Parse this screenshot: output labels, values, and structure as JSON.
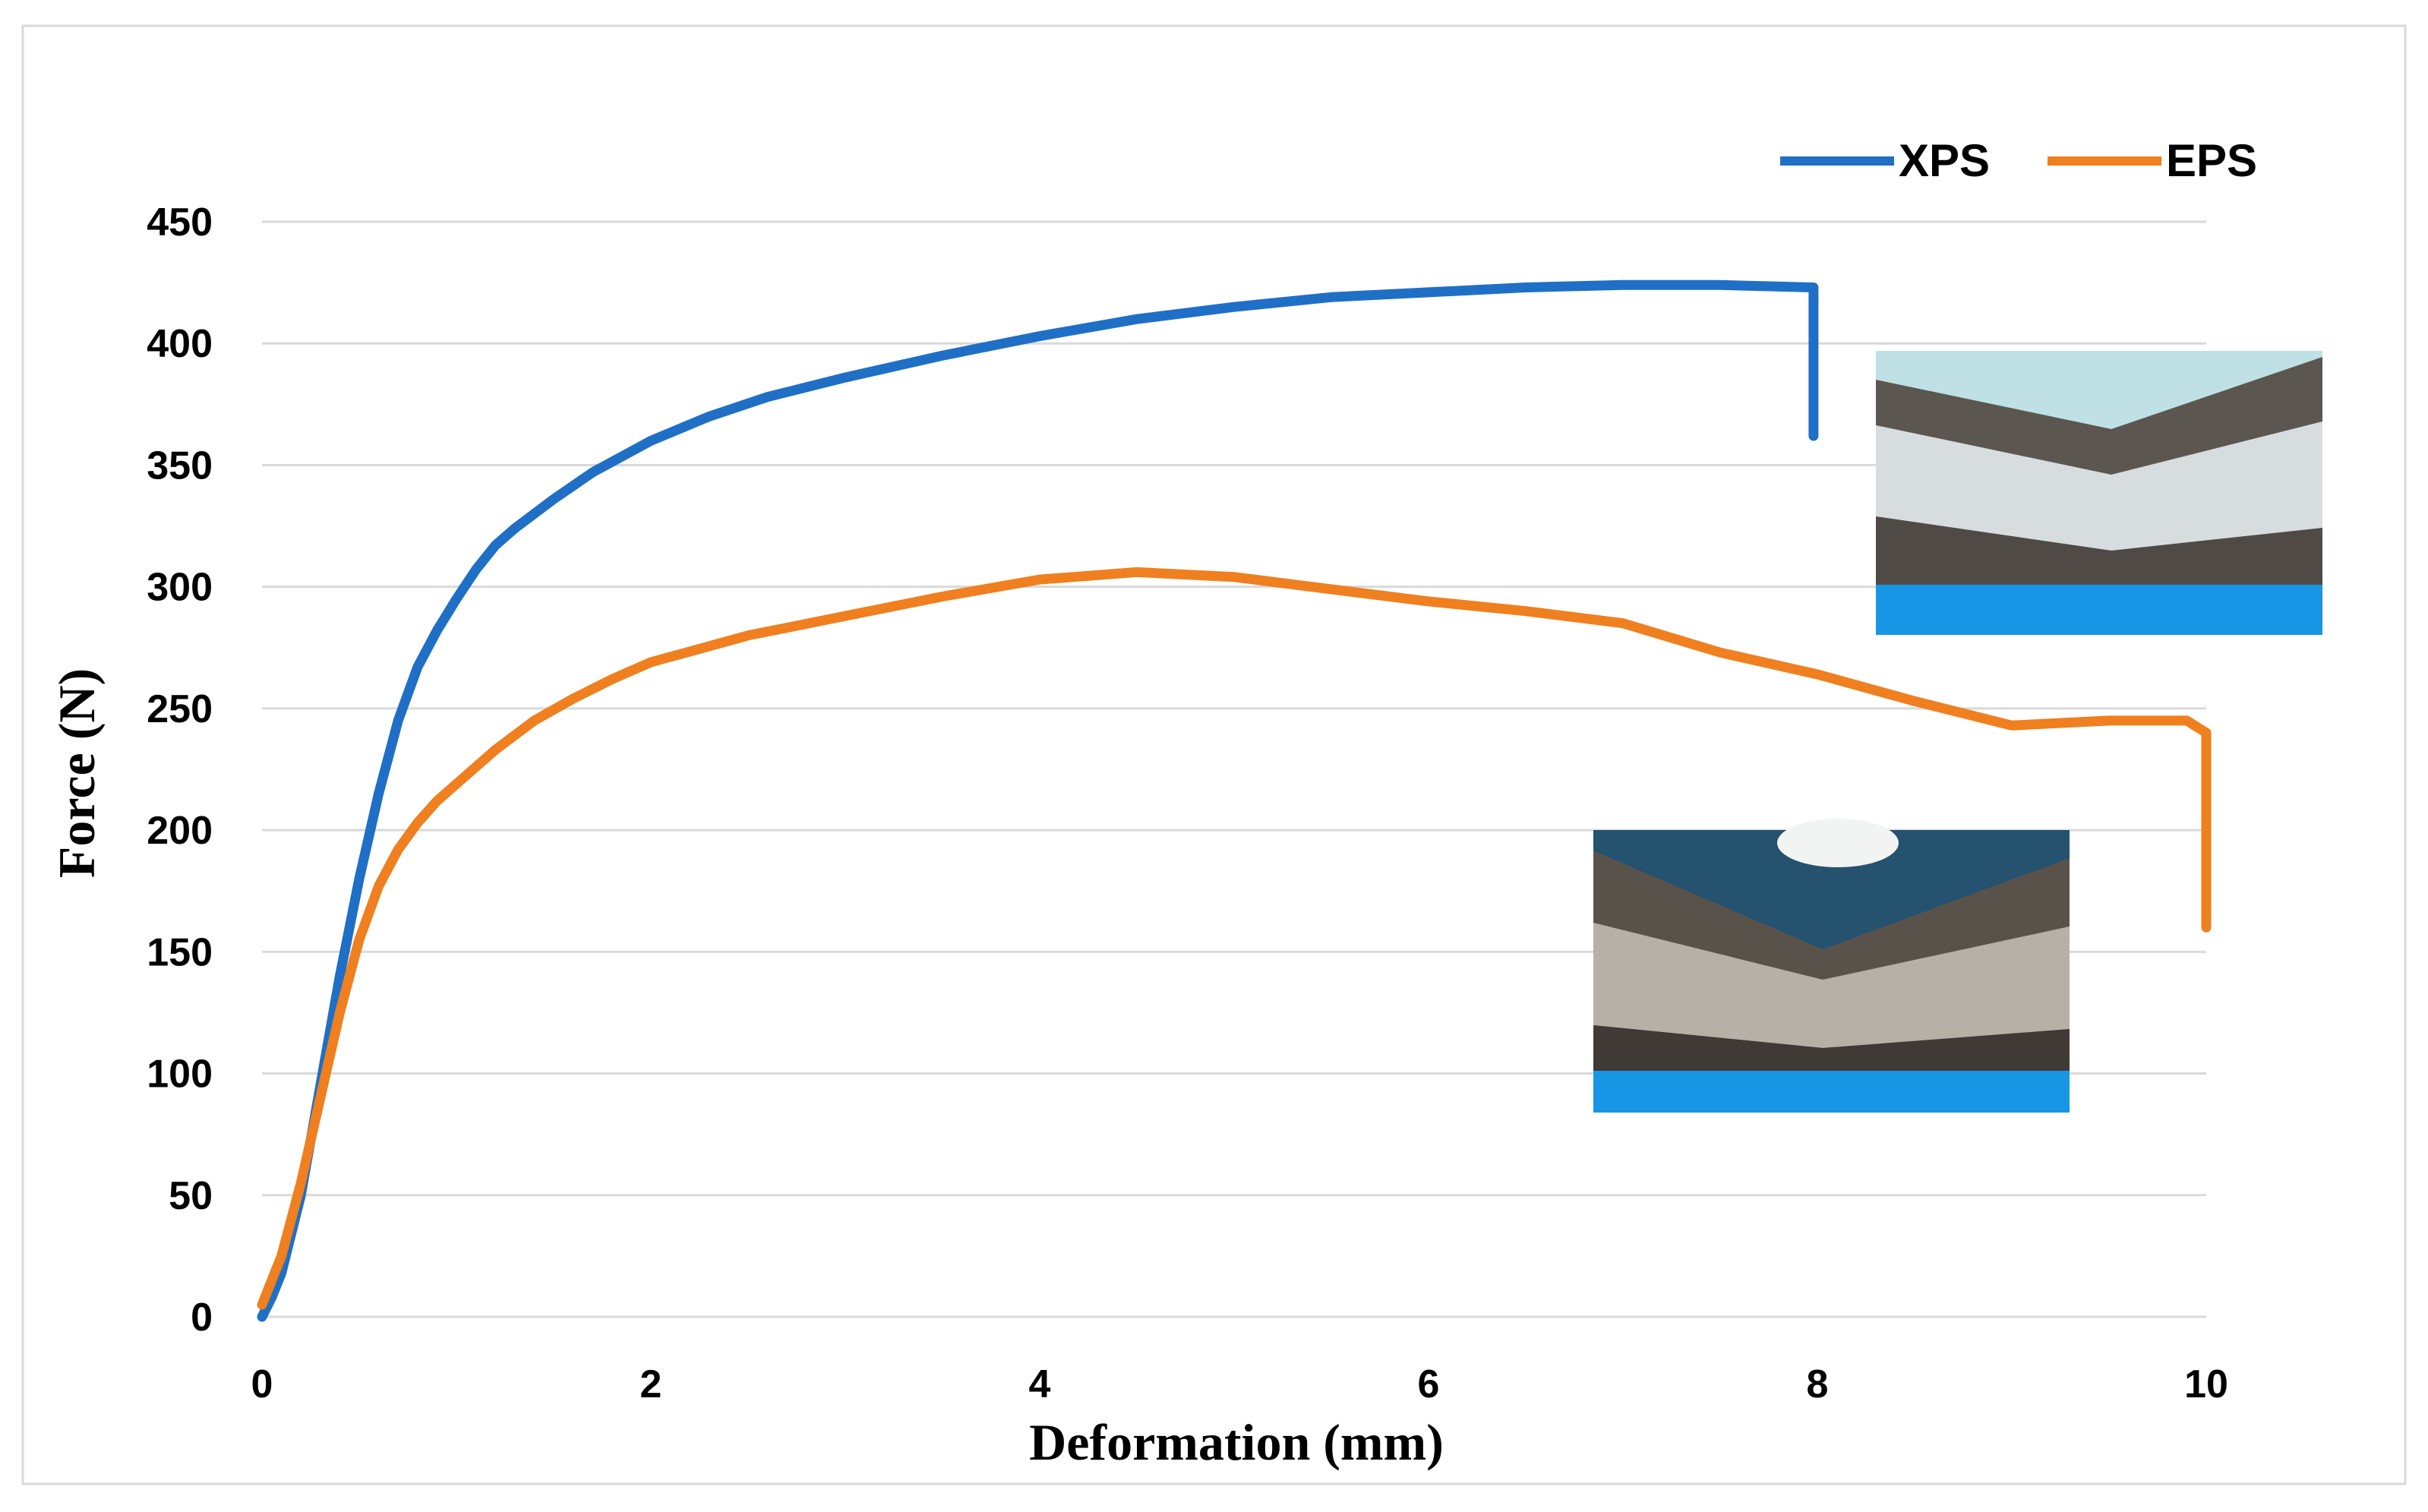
{
  "chart_data": {
    "type": "line",
    "title": "",
    "xlabel": "Deformation (mm)",
    "ylabel": "Force (N)",
    "xlim": [
      0,
      10
    ],
    "ylim": [
      0,
      450
    ],
    "xticks": [
      0,
      2,
      4,
      6,
      8,
      10
    ],
    "yticks": [
      0,
      50,
      100,
      150,
      200,
      250,
      300,
      350,
      400,
      450
    ],
    "grid": "horizontal",
    "legend_position": "top-right",
    "series": [
      {
        "name": "XPS",
        "color": "#1f6fc6",
        "x": [
          0,
          0.05,
          0.1,
          0.2,
          0.3,
          0.4,
          0.5,
          0.6,
          0.7,
          0.8,
          0.9,
          1.0,
          1.1,
          1.2,
          1.3,
          1.5,
          1.7,
          2.0,
          2.3,
          2.6,
          3.0,
          3.5,
          4.0,
          4.5,
          5.0,
          5.5,
          6.0,
          6.5,
          7.0,
          7.5,
          7.98,
          7.98
        ],
        "y": [
          0,
          8,
          18,
          50,
          95,
          140,
          180,
          215,
          245,
          267,
          282,
          295,
          307,
          317,
          324,
          336,
          347,
          360,
          370,
          378,
          386,
          395,
          403,
          410,
          415,
          419,
          421,
          423,
          424,
          424,
          423,
          362
        ]
      },
      {
        "name": "EPS",
        "color": "#f07f1f",
        "x": [
          0,
          0.05,
          0.1,
          0.2,
          0.3,
          0.4,
          0.5,
          0.6,
          0.7,
          0.8,
          0.9,
          1.0,
          1.2,
          1.4,
          1.6,
          1.8,
          2.0,
          2.5,
          3.0,
          3.5,
          4.0,
          4.5,
          5.0,
          5.5,
          6.0,
          6.5,
          7.0,
          7.5,
          8.0,
          8.5,
          9.0,
          9.5,
          9.9,
          10.0,
          10.0
        ],
        "y": [
          5,
          15,
          25,
          55,
          90,
          125,
          155,
          177,
          192,
          203,
          212,
          219,
          233,
          245,
          254,
          262,
          269,
          280,
          288,
          296,
          303,
          306,
          304,
          299,
          294,
          290,
          285,
          273,
          264,
          253,
          243,
          245,
          245,
          240,
          160
        ]
      }
    ]
  }
}
